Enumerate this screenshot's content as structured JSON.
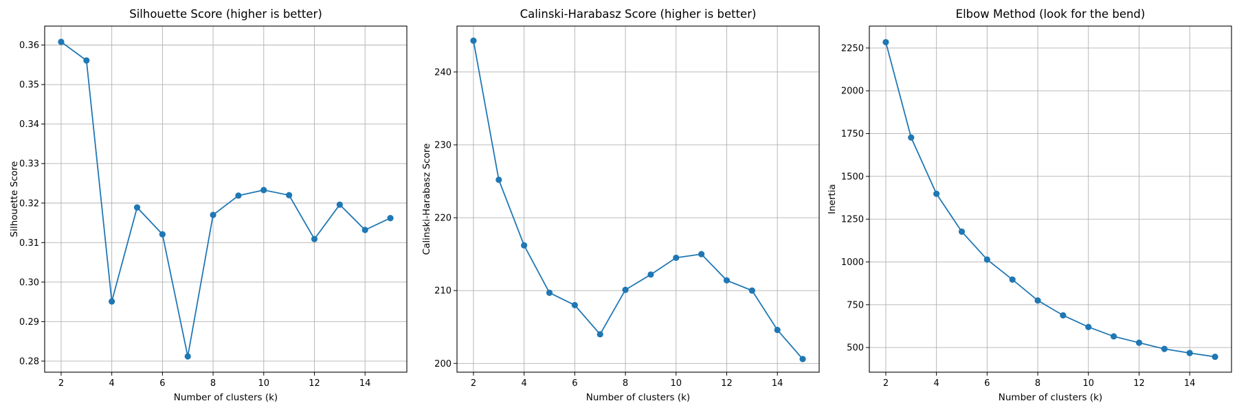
{
  "colors": {
    "series": "#1f77b4",
    "grid": "#b0b0b0"
  },
  "chart_data": [
    {
      "type": "line",
      "title": "Silhouette Score (higher is better)",
      "xlabel": "Number of clusters (k)",
      "ylabel": "Silhouette Score",
      "grid": true,
      "xlim": [
        1.35,
        15.65
      ],
      "ylim": [
        0.2772,
        0.3648
      ],
      "xticks": [
        2,
        4,
        6,
        8,
        10,
        12,
        14
      ],
      "yticks": [
        0.28,
        0.29,
        0.3,
        0.31,
        0.32,
        0.33,
        0.34,
        0.35,
        0.36
      ],
      "ytick_labels": [
        "0.28",
        "0.29",
        "0.30",
        "0.31",
        "0.32",
        "0.33",
        "0.34",
        "0.35",
        "0.36"
      ],
      "x": [
        2,
        3,
        4,
        5,
        6,
        7,
        8,
        9,
        10,
        11,
        12,
        13,
        14,
        15
      ],
      "values": [
        0.3608,
        0.3561,
        0.2951,
        0.3189,
        0.3121,
        0.2812,
        0.317,
        0.3219,
        0.3233,
        0.322,
        0.3109,
        0.3196,
        0.3132,
        0.3162
      ]
    },
    {
      "type": "line",
      "title": "Calinski-Harabasz Score (higher is better)",
      "xlabel": "Number of clusters (k)",
      "ylabel": "Calinski-Harabasz Score",
      "grid": true,
      "xlim": [
        1.35,
        15.65
      ],
      "ylim": [
        198.8,
        246.3
      ],
      "xticks": [
        2,
        4,
        6,
        8,
        10,
        12,
        14
      ],
      "yticks": [
        200,
        210,
        220,
        230,
        240
      ],
      "ytick_labels": [
        "200",
        "210",
        "220",
        "230",
        "240"
      ],
      "x": [
        2,
        3,
        4,
        5,
        6,
        7,
        8,
        9,
        10,
        11,
        12,
        13,
        14,
        15
      ],
      "values": [
        244.3,
        225.2,
        216.2,
        209.7,
        208.0,
        204.0,
        210.1,
        212.2,
        214.5,
        215.0,
        211.4,
        210.0,
        204.6,
        200.6
      ]
    },
    {
      "type": "line",
      "title": "Elbow Method (look for the bend)",
      "xlabel": "Number of clusters (k)",
      "ylabel": "Inertia",
      "grid": true,
      "xlim": [
        1.35,
        15.65
      ],
      "ylim": [
        356,
        2378
      ],
      "xticks": [
        2,
        4,
        6,
        8,
        10,
        12,
        14
      ],
      "yticks": [
        500,
        750,
        1000,
        1250,
        1500,
        1750,
        2000,
        2250
      ],
      "ytick_labels": [
        "500",
        "750",
        "1000",
        "1250",
        "1500",
        "1750",
        "2000",
        "2250"
      ],
      "x": [
        2,
        3,
        4,
        5,
        6,
        7,
        8,
        9,
        10,
        11,
        12,
        13,
        14,
        15
      ],
      "values": [
        2284,
        1727,
        1398,
        1177,
        1014,
        897,
        775,
        688,
        620,
        565,
        528,
        492,
        468,
        446
      ]
    }
  ]
}
